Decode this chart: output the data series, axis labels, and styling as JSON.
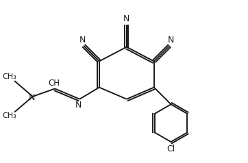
{
  "bg_color": "#ffffff",
  "line_color": "#1a1a1a",
  "line_width": 1.4,
  "figsize": [
    3.62,
    2.38
  ],
  "dpi": 100,
  "xlim": [
    0,
    9.5
  ],
  "ylim": [
    0,
    6.25
  ]
}
